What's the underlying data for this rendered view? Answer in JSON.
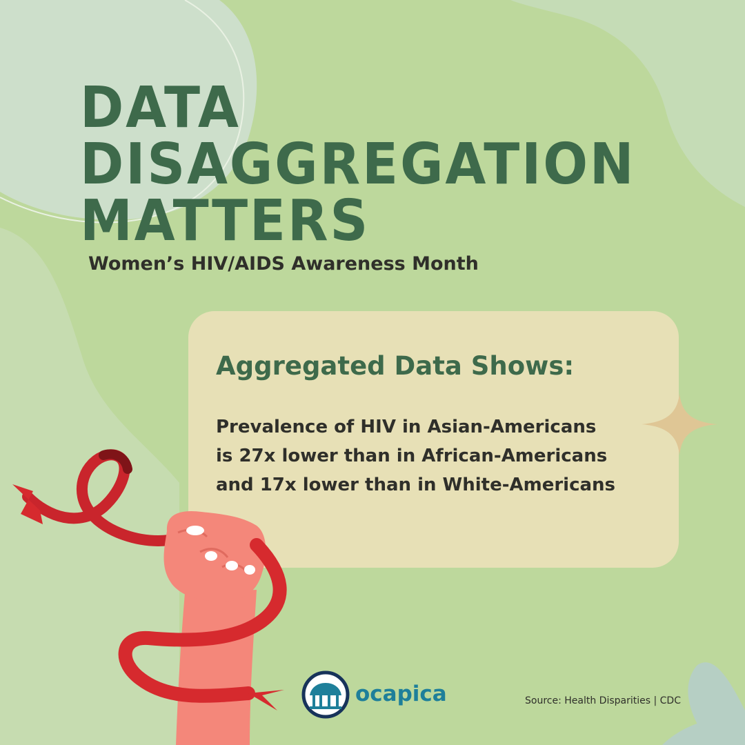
{
  "title": {
    "line1": "DATA",
    "line2": "DISAGGREGATION",
    "line3": "MATTERS"
  },
  "subtitle": "Women’s HIV/AIDS Awareness Month",
  "card": {
    "heading": "Aggregated Data Shows:",
    "lines": [
      "Prevalence of HIV in Asian-Americans",
      "is 27x lower than in African-Americans",
      "and 17x lower than in White-Americans"
    ]
  },
  "logo": {
    "name": "ocapica"
  },
  "source": "Source: Health Disparities  |  CDC",
  "colors": {
    "background": "#bdd89c",
    "title": "#3e6a4b",
    "card": "#e7e0b6",
    "ribbon": "#d62a2e",
    "skin": "#f4877a",
    "logo_text": "#1e7f9a",
    "logo_ring": "#17335a"
  }
}
